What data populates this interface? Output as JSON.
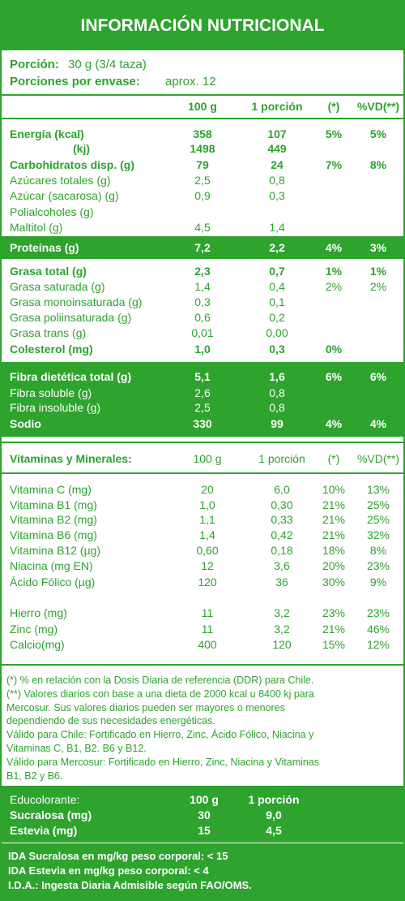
{
  "title": "INFORMACIÓN NUTRICIONAL",
  "serving": {
    "label": "Porción:",
    "value": "30 g (3/4 taza)"
  },
  "servings_per_container": {
    "label": "Porciones por envase:",
    "value": "aprox. 12"
  },
  "header": [
    "100 g",
    "1 porción",
    "(*)",
    "%VD(**)"
  ],
  "nutrients": [
    {
      "name": "Energía (kcal)",
      "per_100g": "358",
      "per_portion": "107",
      "dv_chile": "5%",
      "dv_mercosur": "5%"
    },
    {
      "name": "(kj)",
      "per_100g": "1498",
      "per_portion": "449"
    },
    {
      "name": "Carbohidratos disp. (g)",
      "per_100g": "79",
      "per_portion": "24",
      "dv_chile": "7%",
      "dv_mercosur": "8%"
    },
    {
      "name": "Azúcares totales (g)",
      "per_100g": "2,5",
      "per_portion": "0,8"
    },
    {
      "name": "Azúcar (sacarosa) (g)",
      "per_100g": "0,9",
      "per_portion": "0,3"
    },
    {
      "name": "Polialcoholes (g)"
    },
    {
      "name": "Maltitol (g)",
      "per_100g": "4,5",
      "per_portion": "1,4"
    },
    {
      "name": "Proteínas (g)",
      "per_100g": "7,2",
      "per_portion": "2,2",
      "dv_chile": "4%",
      "dv_mercosur": "3%"
    },
    {
      "name": "Grasa total (g)",
      "per_100g": "2,3",
      "per_portion": "0,7",
      "dv_chile": "1%",
      "dv_mercosur": "1%"
    },
    {
      "name": "Grasa saturada (g)",
      "per_100g": "1,4",
      "per_portion": "0,4",
      "dv_chile": "2%",
      "dv_mercosur": "2%"
    },
    {
      "name": "Grasa monoinsaturada (g)",
      "per_100g": "0,3",
      "per_portion": "0,1"
    },
    {
      "name": "Grasa poliinsaturada (g)",
      "per_100g": "0,6",
      "per_portion": "0,2"
    },
    {
      "name": "Grasa trans (g)",
      "per_100g": "0,01",
      "per_portion": "0,00"
    },
    {
      "name": "Colesterol (mg)",
      "per_100g": "1,0",
      "per_portion": "0,3",
      "dv_chile": "0%"
    },
    {
      "name": "Fibra dietética total (g)",
      "per_100g": "5,1",
      "per_portion": "1,6",
      "dv_chile": "6%",
      "dv_mercosur": "6%"
    },
    {
      "name": "Fibra soluble (g)",
      "per_100g": "2,6",
      "per_portion": "0,8"
    },
    {
      "name": "Fibra insoluble (g)",
      "per_100g": "2,5",
      "per_portion": "0,8"
    },
    {
      "name": "Sodio",
      "per_100g": "330",
      "per_portion": "99",
      "dv_chile": "4%",
      "dv_mercosur": "4%"
    }
  ],
  "vitamins_header": {
    "label": "Vitaminas y Minerales:",
    "columns": [
      "100 g",
      "1 porción",
      "(*)",
      "%VD(**)"
    ]
  },
  "vitamins": [
    {
      "name": "Vitamina C (mg)",
      "per_100g": "20",
      "per_portion": "6,0",
      "dv_chile": "10%",
      "dv_mercosur": "13%"
    },
    {
      "name": "Vitamina B1 (mg)",
      "per_100g": "1,0",
      "per_portion": "0,30",
      "dv_chile": "21%",
      "dv_mercosur": "25%"
    },
    {
      "name": "Vitamina B2 (mg)",
      "per_100g": "1,1",
      "per_portion": "0,33",
      "dv_chile": "21%",
      "dv_mercosur": "25%"
    },
    {
      "name": "Vitamina B6 (mg)",
      "per_100g": "1,4",
      "per_portion": "0,42",
      "dv_chile": "21%",
      "dv_mercosur": "32%"
    },
    {
      "name": "Vitamina B12 (µg)",
      "per_100g": "0,60",
      "per_portion": "0,18",
      "dv_chile": "18%",
      "dv_mercosur": "8%"
    },
    {
      "name": "Niacina (mg EN)",
      "per_100g": "12",
      "per_portion": "3,6",
      "dv_chile": "20%",
      "dv_mercosur": "23%"
    },
    {
      "name": "Ácido Fólico (µg)",
      "per_100g": "120",
      "per_portion": "36",
      "dv_chile": "30%",
      "dv_mercosur": "9%"
    },
    {
      "name": "Hierro (mg)",
      "per_100g": "11",
      "per_portion": "3,2",
      "dv_chile": "23%",
      "dv_mercosur": "23%"
    },
    {
      "name": "Zinc (mg)",
      "per_100g": "11",
      "per_portion": "3,2",
      "dv_chile": "21%",
      "dv_mercosur": "46%"
    },
    {
      "name": "Calcio(mg)",
      "per_100g": "400",
      "per_portion": "120",
      "dv_chile": "15%",
      "dv_mercosur": "12%"
    }
  ],
  "footnotes": [
    "(*) % en relación con la Dosis Diaria de referencia (DDR) para Chile.",
    "(**) Valores diarios con base a una dieta de 2000 kcal u 8400 kj para",
    "Mercosur. Sus valores diarios pueden ser mayores o menores",
    "dependiendo de sus necesidades energéticas.",
    "Válido para Chile: Fortificado en Hierro, Zinc, Ácido Fólico, Niacina y",
    "Vitaminas C, B1, B2. B6 y B12.",
    "Válido para Mercosur: Fortificado en Hierro, Zinc, Niacina y Vitaminas",
    "B1, B2 y B6."
  ],
  "sweeteners": {
    "header": {
      "label": "Educolorante:",
      "columns": [
        "100 g",
        "1 porción"
      ]
    },
    "rows": [
      {
        "name": "Sucralosa (mg)",
        "per_100g": "30",
        "per_portion": "9,0"
      },
      {
        "name": "Estevia (mg)",
        "per_100g": "15",
        "per_portion": "4,5"
      }
    ]
  },
  "ida_notes": [
    "IDA Sucralosa en mg/kg peso corporal: < 15",
    "IDA Estevia en mg/kg peso corporal: < 4",
    "I.D.A.: Ingesta Diaria Admisible según FAO/OMS."
  ]
}
